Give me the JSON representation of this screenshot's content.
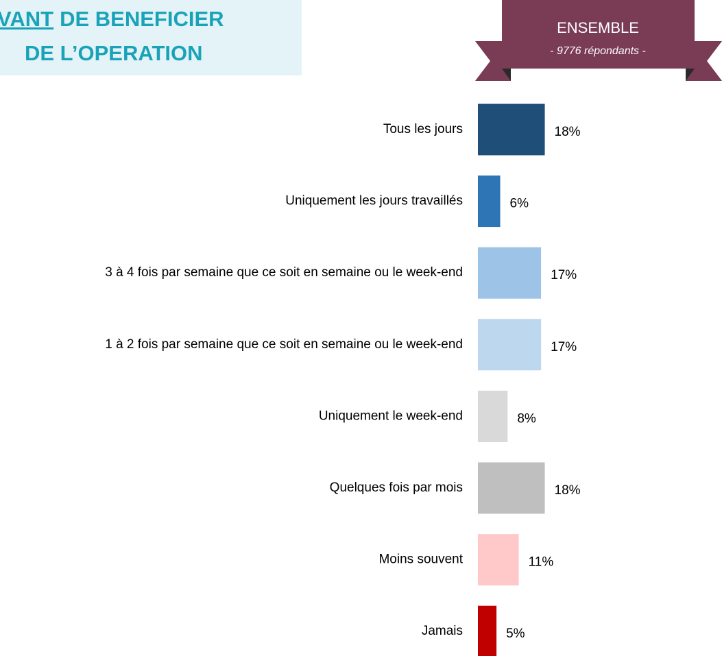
{
  "chart_data": {
    "type": "bar",
    "title": {
      "underlined": "VANT",
      "rest": "DE BENEFICIER",
      "line2": "DE L’OPERATION"
    },
    "group": {
      "name": "ENSEMBLE",
      "respondents": "- 9776 répondants -"
    },
    "categories": [
      "Tous les jours",
      "Uniquement les jours travaillés",
      "3 à 4 fois par semaine que ce soit en semaine ou le week-end",
      "1 à 2 fois par semaine que ce soit en semaine ou le week-end",
      "Uniquement le week-end",
      "Quelques fois par mois",
      "Moins souvent",
      "Jamais"
    ],
    "values": [
      18,
      6,
      17,
      17,
      8,
      18,
      11,
      5
    ],
    "value_labels": [
      "18%",
      "6%",
      "17%",
      "17%",
      "8%",
      "18%",
      "11%",
      "5%"
    ],
    "colors": [
      "#1f4e79",
      "#2e75b6",
      "#9dc3e6",
      "#bdd7ee",
      "#d9d9d9",
      "#bfbfbf",
      "#ffc9c9",
      "#c00000"
    ]
  }
}
